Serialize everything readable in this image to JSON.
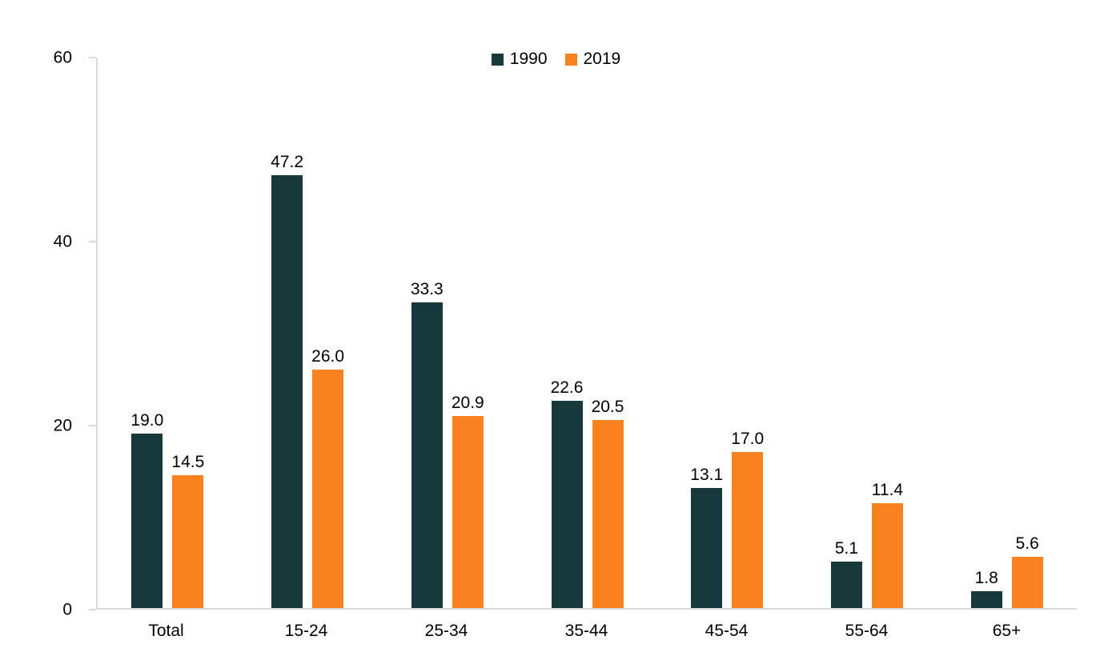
{
  "chart_data": {
    "type": "bar",
    "title": "",
    "categories": [
      "Total",
      "15-24",
      "25-34",
      "35-44",
      "45-54",
      "55-64",
      "65+"
    ],
    "series": [
      {
        "name": "1990",
        "color": "#17393c",
        "values": [
          19.0,
          47.2,
          33.3,
          22.6,
          13.1,
          5.1,
          1.8
        ]
      },
      {
        "name": "2019",
        "color": "#f8821f",
        "values": [
          14.5,
          26.0,
          20.9,
          20.5,
          17.0,
          11.4,
          5.6
        ]
      }
    ],
    "xlabel": "",
    "ylabel": "",
    "ylim": [
      0,
      60
    ],
    "yticks": [
      0,
      20,
      40,
      60
    ],
    "grid": false,
    "legend_position": "top-center",
    "value_labels": true,
    "value_label_decimals": 1,
    "axis_color": "#d9d9d9",
    "text_color": "#000000",
    "background_color": "#ffffff"
  }
}
